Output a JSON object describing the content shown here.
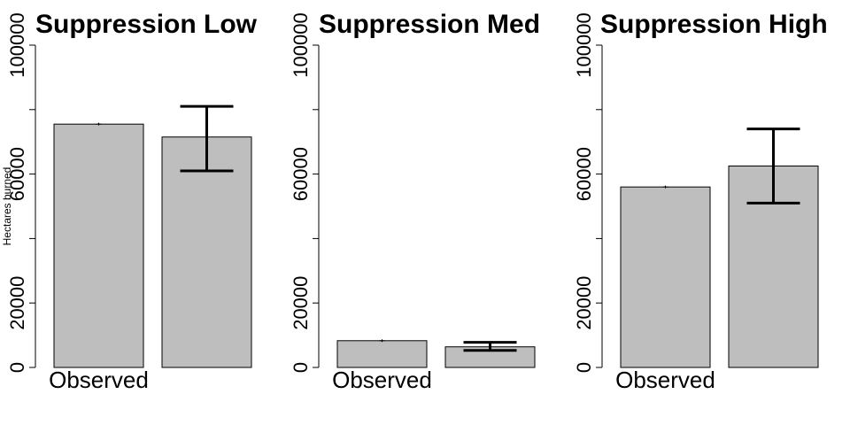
{
  "chart_data": [
    {
      "type": "bar",
      "title": "Suppression Low",
      "categories": [
        "Observed",
        ""
      ],
      "values": [
        75500,
        71500
      ],
      "error_low": [
        75500,
        61000
      ],
      "error_high": [
        75500,
        81000
      ],
      "ylabel": "Hectares burned",
      "ylim": [
        0,
        100000
      ],
      "yticks": [
        0,
        20000,
        60000,
        100000
      ],
      "grid": false
    },
    {
      "type": "bar",
      "title": "Suppression Med",
      "categories": [
        "Observed",
        ""
      ],
      "values": [
        8300,
        6400
      ],
      "error_low": [
        8300,
        5300
      ],
      "error_high": [
        8300,
        7800
      ],
      "ylabel": "",
      "ylim": [
        0,
        100000
      ],
      "yticks": [
        0,
        20000,
        60000,
        100000
      ],
      "grid": false
    },
    {
      "type": "bar",
      "title": "Suppression High",
      "categories": [
        "Observed",
        ""
      ],
      "values": [
        56000,
        62500
      ],
      "error_low": [
        56000,
        51000
      ],
      "error_high": [
        56000,
        74000
      ],
      "ylabel": "",
      "ylim": [
        0,
        100000
      ],
      "yticks": [
        0,
        20000,
        60000,
        100000
      ],
      "grid": false
    }
  ],
  "colors": {
    "bar_fill": "#bebebe",
    "bar_stroke": "#000000",
    "errorbar": "#000000"
  }
}
